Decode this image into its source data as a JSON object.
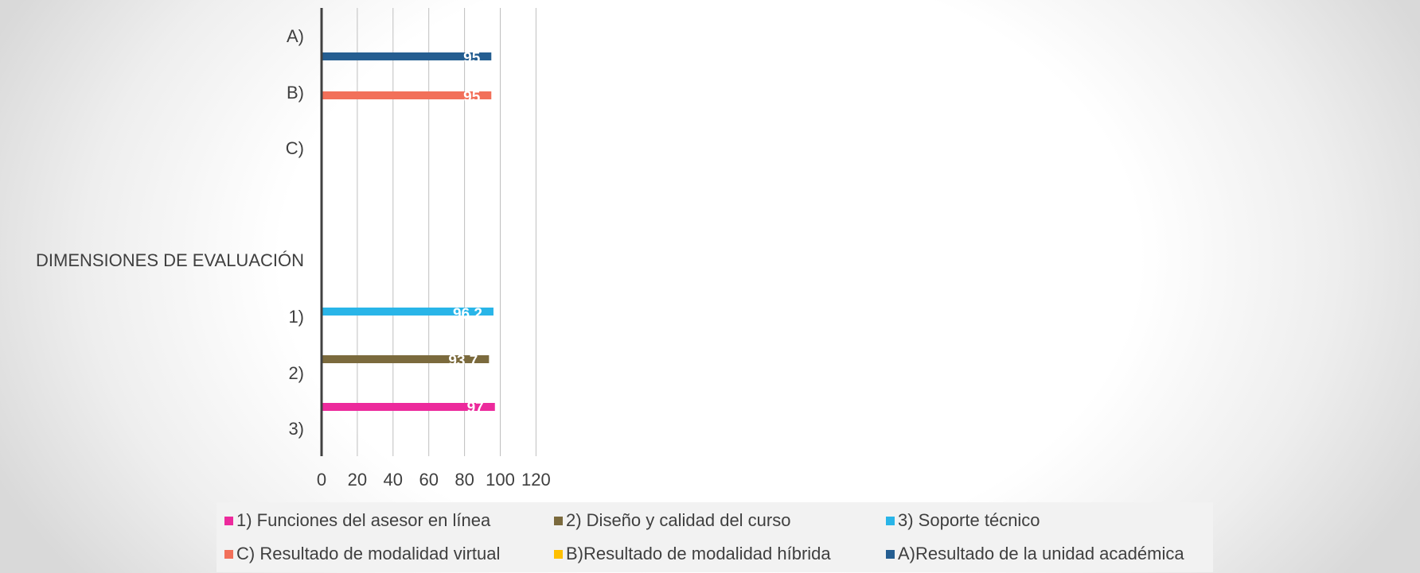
{
  "chart_data": {
    "type": "bar",
    "orientation": "horizontal",
    "title": "",
    "ylabel": "DIMENSIONES DE EVALUACIÓN",
    "xlabel": "",
    "xlim": [
      0,
      120
    ],
    "xticks": [
      0,
      20,
      40,
      60,
      80,
      100,
      120
    ],
    "grid": true,
    "legend_position": "bottom",
    "categories": [
      "A)",
      "B)",
      "C)",
      "1)",
      "2)",
      "3)"
    ],
    "series": [
      {
        "name": "A)Resultado de la unidad académica",
        "color": "#255e91",
        "category": "A)",
        "value": 95,
        "label": "95"
      },
      {
        "name": "C) Resultado de modalidad virtual",
        "color": "#f2705a",
        "category": "B)",
        "value": 95,
        "label": "95"
      },
      {
        "name": "B)Resultado de modalidad híbrida",
        "color": "#ffc000",
        "category": "C)",
        "value": 0,
        "label": "0"
      },
      {
        "name": "3) Soporte técnico",
        "color": "#29b5e8",
        "category": "1)",
        "value": 96.2,
        "label": "96.2"
      },
      {
        "name": "2) Diseño y calidad del curso",
        "color": "#7b6a3d",
        "category": "2)",
        "value": 93.7,
        "label": "93.7"
      },
      {
        "name": "1) Funciones del asesor en línea",
        "color": "#ec2a9c",
        "category": "3)",
        "value": 97,
        "label": "97"
      }
    ],
    "legend": [
      {
        "label": "1) Funciones del asesor en línea",
        "color": "#ec2a9c"
      },
      {
        "label": "2) Diseño y calidad del curso",
        "color": "#7b6a3d"
      },
      {
        "label": "3) Soporte técnico",
        "color": "#29b5e8"
      },
      {
        "label": "C) Resultado de modalidad virtual",
        "color": "#f2705a"
      },
      {
        "label": "B)Resultado de modalidad híbrida",
        "color": "#ffc000"
      },
      {
        "label": "A)Resultado de la unidad académica",
        "color": "#255e91"
      }
    ]
  }
}
